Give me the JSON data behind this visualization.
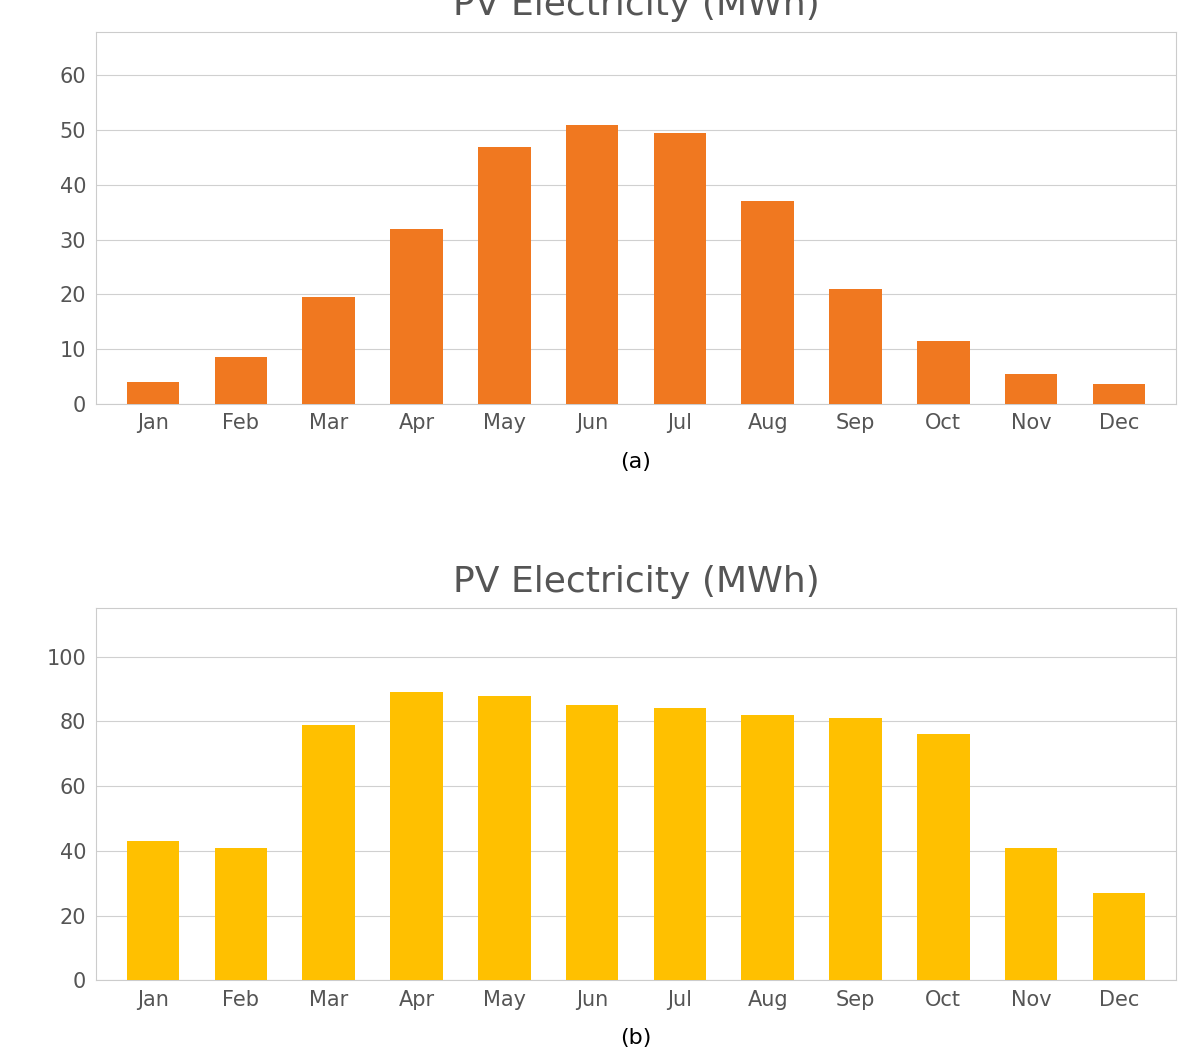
{
  "title": "PV Electricity (MWh)",
  "months": [
    "Jan",
    "Feb",
    "Mar",
    "Apr",
    "May",
    "Jun",
    "Jul",
    "Aug",
    "Sep",
    "Oct",
    "Nov",
    "Dec"
  ],
  "values_a": [
    4,
    8.5,
    19.5,
    32,
    47,
    51,
    49.5,
    37,
    21,
    11.5,
    5.5,
    3.5
  ],
  "values_b": [
    43,
    41,
    79,
    89,
    88,
    85,
    84,
    82,
    81,
    76,
    41,
    27
  ],
  "color_a": "#F07820",
  "color_b": "#FFC000",
  "ylim_a": [
    0,
    68
  ],
  "ylim_b": [
    0,
    115
  ],
  "yticks_a": [
    0,
    10,
    20,
    30,
    40,
    50,
    60
  ],
  "yticks_b": [
    0,
    20,
    40,
    60,
    80,
    100
  ],
  "label_a": "(a)",
  "label_b": "(b)",
  "bg_color": "#ffffff",
  "grid_color": "#d0d0d0",
  "border_color": "#cccccc",
  "title_fontsize": 26,
  "tick_fontsize": 15,
  "label_fontsize": 16,
  "bar_width": 0.6
}
